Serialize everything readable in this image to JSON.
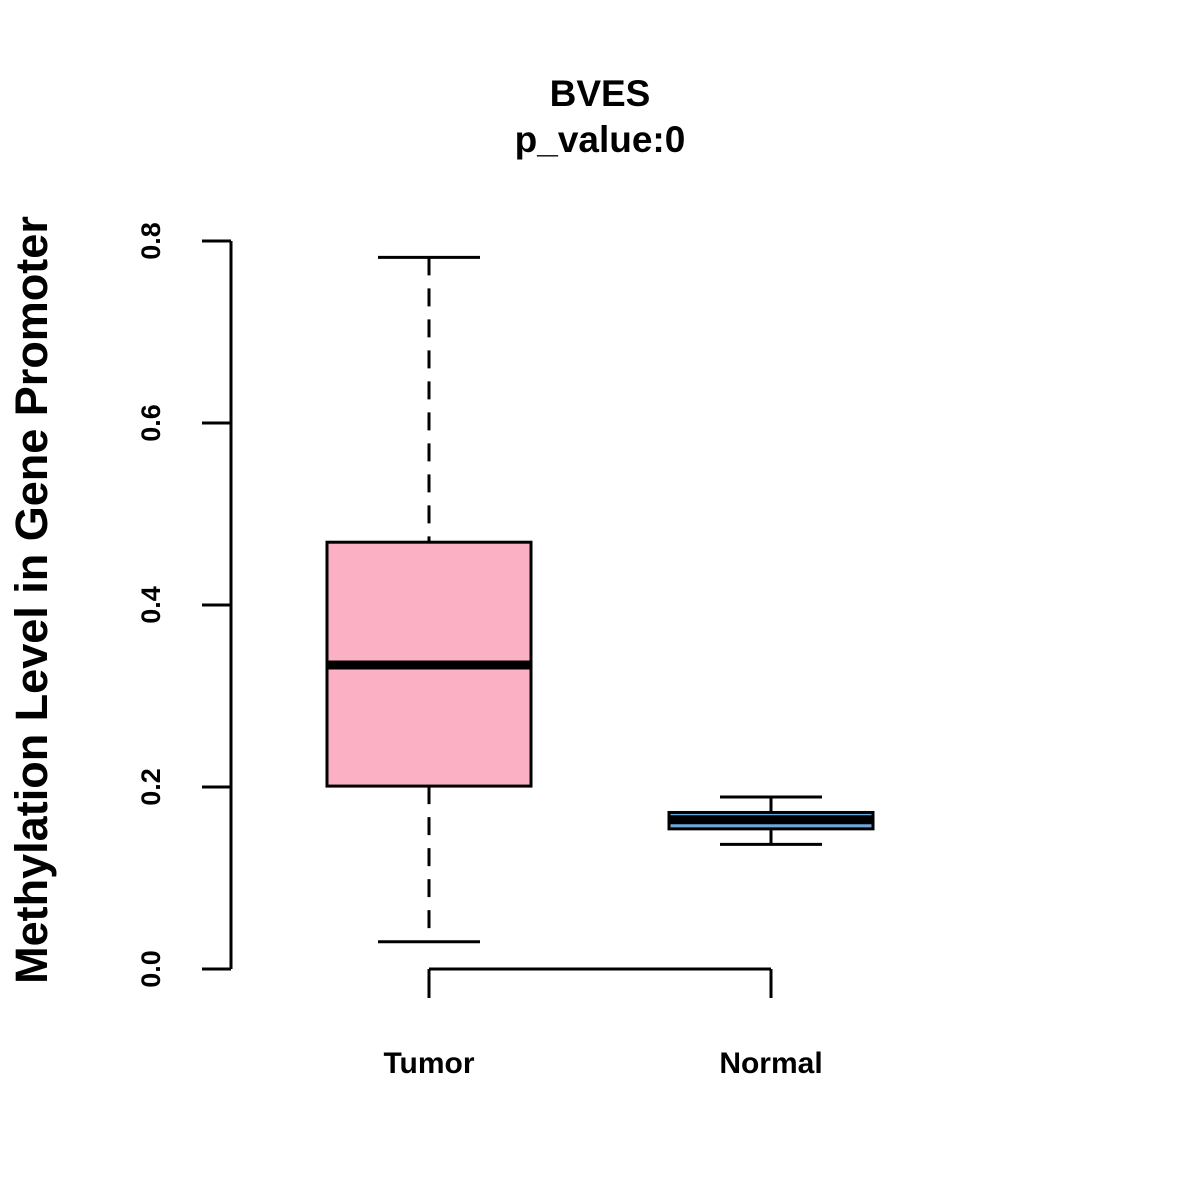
{
  "chart_data": {
    "type": "boxplot",
    "title": "BVES",
    "subtitle": "p_value:0",
    "xlabel": "",
    "ylabel": "Methylation Level in Gene Promoter",
    "ylim": [
      0,
      0.8
    ],
    "y_ticks": [
      "0.0",
      "0.2",
      "0.4",
      "0.6",
      "0.8"
    ],
    "y_tick_values": [
      0.0,
      0.2,
      0.4,
      0.6,
      0.8
    ],
    "grid": false,
    "categories": [
      "Tumor",
      "Normal"
    ],
    "boxes": [
      {
        "name": "Tumor",
        "min": 0.03,
        "q1": 0.201,
        "median": 0.334,
        "q3": 0.469,
        "max": 0.782,
        "color": "#FBB1C3"
      },
      {
        "name": "Normal",
        "min": 0.137,
        "q1": 0.154,
        "median": 0.164,
        "q3": 0.172,
        "max": 0.189,
        "color": "#6FA8DC"
      }
    ]
  }
}
